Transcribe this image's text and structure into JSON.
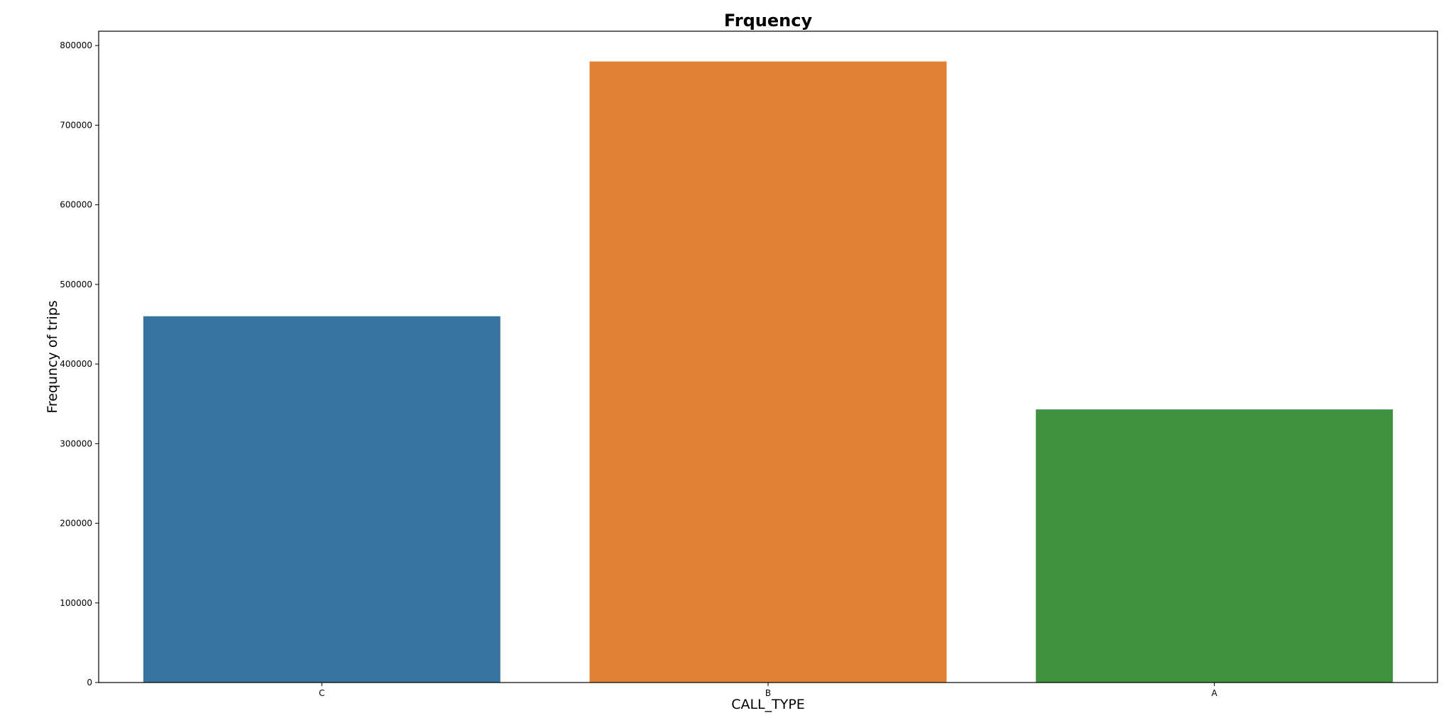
{
  "chart_data": {
    "type": "bar",
    "title": "Frquency",
    "xlabel": "CALL_TYPE",
    "ylabel": "Frequncy of trips",
    "categories": [
      "C",
      "B",
      "A"
    ],
    "values": [
      460000,
      780000,
      343000
    ],
    "colors": [
      "#3774a0",
      "#e08136",
      "#3f913f"
    ],
    "ylim": [
      0,
      818000
    ],
    "yticks": [
      0,
      100000,
      200000,
      300000,
      400000,
      500000,
      600000,
      700000,
      800000
    ],
    "ytick_labels": [
      "0",
      "100000",
      "200000",
      "300000",
      "400000",
      "500000",
      "600000",
      "700000",
      "800000"
    ],
    "grid": false,
    "legend": false
  }
}
